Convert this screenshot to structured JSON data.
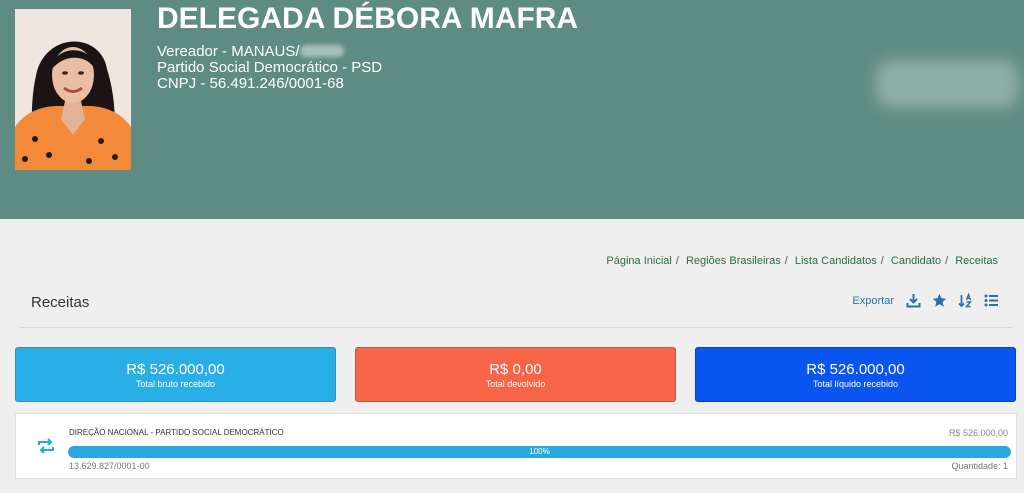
{
  "candidate": {
    "name": "DELEGADA DÉBORA MAFRA",
    "role_prefix": "Vereador - MANAUS/",
    "party": "Partido Social Democrático - PSD",
    "cnpj_line": "CNPJ - 56.491.246/0001-68"
  },
  "breadcrumb": {
    "items": [
      "Página Inicial",
      "Regiões Brasileiras",
      "Lista Candidatos",
      "Candidato",
      "Receitas"
    ]
  },
  "section": {
    "title": "Receitas",
    "export_label": "Exportar"
  },
  "icons": [
    "download-icon",
    "star-icon",
    "sort-icon",
    "list-icon",
    "repeat-icon"
  ],
  "summary_cards": [
    {
      "amount": "R$ 526.000,00",
      "caption": "Total bruto recebido",
      "color": "#2aaee6"
    },
    {
      "amount": "R$ 0,00",
      "caption": "Total devolvido",
      "color": "#f66548"
    },
    {
      "amount": "R$ 526.000,00",
      "caption": "Total líquido recebido",
      "color": "#0a55f0"
    }
  ],
  "donor": {
    "name": "DIREÇÃO NACIONAL - PARTIDO SOCIAL DEMOCRÁTICO",
    "amount": "R$ 526.000,00",
    "percent_label": "100%",
    "percent": 100,
    "cnpj": "13.629.827/0001-00",
    "quantity": "Quantidade: 1"
  },
  "colors": {
    "header_bg": "#5f8c82",
    "breadcrumb": "#2f6b44",
    "progress": "#29a8de"
  }
}
